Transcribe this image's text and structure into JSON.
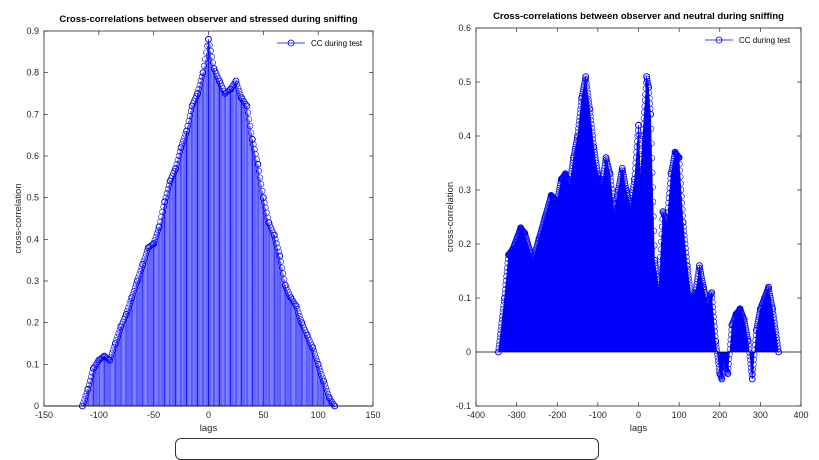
{
  "chart_data": [
    {
      "type": "stem",
      "title": "Cross-correlations between observer and stressed during sniffing",
      "xlabel": "lags",
      "ylabel": "cross-correlation",
      "xlim": [
        -150,
        150
      ],
      "ylim": [
        0,
        0.9
      ],
      "xticks": [
        -150,
        -100,
        -50,
        0,
        50,
        100,
        150
      ],
      "yticks": [
        0,
        0.1,
        0.2,
        0.3,
        0.4,
        0.5,
        0.6,
        0.7,
        0.8,
        0.9
      ],
      "legend": "top-right",
      "color": "#0000ff",
      "series": [
        {
          "name": "CC during test",
          "x": [
            -115,
            -110,
            -105,
            -100,
            -95,
            -90,
            -85,
            -80,
            -75,
            -70,
            -65,
            -60,
            -55,
            -50,
            -45,
            -40,
            -35,
            -30,
            -25,
            -20,
            -15,
            -10,
            -5,
            0,
            5,
            10,
            15,
            20,
            25,
            30,
            35,
            40,
            45,
            50,
            55,
            60,
            65,
            70,
            75,
            80,
            85,
            90,
            95,
            100,
            105,
            110,
            115
          ],
          "y": [
            0.0,
            0.04,
            0.09,
            0.11,
            0.12,
            0.11,
            0.15,
            0.19,
            0.22,
            0.26,
            0.3,
            0.34,
            0.38,
            0.39,
            0.43,
            0.49,
            0.54,
            0.57,
            0.62,
            0.66,
            0.72,
            0.75,
            0.8,
            0.88,
            0.81,
            0.78,
            0.75,
            0.76,
            0.78,
            0.74,
            0.72,
            0.64,
            0.58,
            0.5,
            0.44,
            0.41,
            0.36,
            0.29,
            0.26,
            0.24,
            0.2,
            0.17,
            0.14,
            0.1,
            0.06,
            0.02,
            0.0
          ]
        }
      ]
    },
    {
      "type": "stem",
      "title": "Cross-correlations between observer and neutral during sniffing",
      "xlabel": "lags",
      "ylabel": "cross-correlation",
      "xlim": [
        -400,
        400
      ],
      "ylim": [
        -0.1,
        0.6
      ],
      "xticks": [
        -400,
        -300,
        -200,
        -100,
        0,
        100,
        200,
        300,
        400
      ],
      "yticks": [
        -0.1,
        0,
        0.1,
        0.2,
        0.3,
        0.4,
        0.5,
        0.6
      ],
      "legend": "top-right",
      "color": "#0000ff",
      "series": [
        {
          "name": "CC during test",
          "x": [
            -345,
            -330,
            -320,
            -310,
            -290,
            -280,
            -260,
            -245,
            -230,
            -215,
            -200,
            -190,
            -180,
            -170,
            -160,
            -150,
            -140,
            -130,
            -120,
            -110,
            -100,
            -90,
            -80,
            -70,
            -60,
            -50,
            -40,
            -30,
            -20,
            -10,
            0,
            5,
            10,
            20,
            25,
            30,
            40,
            50,
            60,
            70,
            80,
            90,
            100,
            110,
            120,
            130,
            140,
            150,
            160,
            170,
            180,
            190,
            200,
            205,
            210,
            220,
            230,
            240,
            250,
            260,
            270,
            280,
            290,
            300,
            310,
            320,
            330,
            345
          ],
          "y": [
            0.0,
            0.1,
            0.18,
            0.19,
            0.23,
            0.22,
            0.17,
            0.21,
            0.25,
            0.29,
            0.28,
            0.32,
            0.33,
            0.31,
            0.36,
            0.4,
            0.47,
            0.51,
            0.45,
            0.38,
            0.33,
            0.31,
            0.36,
            0.33,
            0.26,
            0.3,
            0.34,
            0.3,
            0.27,
            0.32,
            0.42,
            0.33,
            0.4,
            0.51,
            0.49,
            0.44,
            0.17,
            0.12,
            0.26,
            0.24,
            0.33,
            0.37,
            0.36,
            0.24,
            0.16,
            0.1,
            0.11,
            0.16,
            0.12,
            0.09,
            0.11,
            0.02,
            -0.04,
            -0.05,
            -0.02,
            -0.04,
            0.05,
            0.07,
            0.08,
            0.06,
            0.02,
            -0.05,
            0.04,
            0.08,
            0.1,
            0.12,
            0.08,
            0.0
          ]
        }
      ]
    }
  ]
}
